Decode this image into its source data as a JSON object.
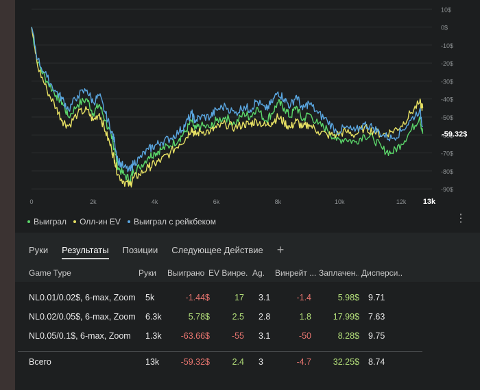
{
  "chart_data": {
    "type": "line",
    "x_ticks": [
      "0",
      "2k",
      "4k",
      "6k",
      "8k",
      "10k",
      "12k",
      "13k"
    ],
    "y_ticks": [
      "10$",
      "0$",
      "-10$",
      "-20$",
      "-30$",
      "-40$",
      "-50$",
      "-60$",
      "-70$",
      "-80$",
      "-90$"
    ],
    "x_range": [
      0,
      13000
    ],
    "y_range": [
      -93,
      12
    ],
    "current_value_label": "-59.32$",
    "grid": true,
    "legend_position": "bottom-left",
    "series": [
      {
        "name": "Выиграл",
        "color": "#5bd66a",
        "x": [
          0,
          200,
          500,
          800,
          1000,
          1200,
          1500,
          1800,
          2000,
          2200,
          2400,
          2600,
          2700,
          2800,
          3000,
          3200,
          3300,
          3500,
          3800,
          4000,
          4200,
          4500,
          4800,
          5000,
          5200,
          5300,
          5500,
          5800,
          6000,
          6300,
          6600,
          6900,
          7100,
          7300,
          7600,
          7800,
          8000,
          8200,
          8400,
          8600,
          8800,
          9000,
          9300,
          9600,
          9900,
          10200,
          10500,
          10800,
          11100,
          11400,
          11700,
          12000,
          12300,
          12600,
          12700
        ],
        "values": [
          0,
          -20,
          -30,
          -38,
          -42,
          -50,
          -43,
          -40,
          -48,
          -43,
          -52,
          -62,
          -68,
          -78,
          -82,
          -85,
          -80,
          -78,
          -72,
          -70,
          -68,
          -66,
          -62,
          -58,
          -52,
          -57,
          -55,
          -56,
          -52,
          -50,
          -54,
          -48,
          -50,
          -45,
          -52,
          -48,
          -42,
          -45,
          -50,
          -44,
          -52,
          -48,
          -54,
          -57,
          -63,
          -62,
          -64,
          -60,
          -62,
          -68,
          -70,
          -65,
          -58,
          -50,
          -59.32
        ]
      },
      {
        "name": "Олл-ин EV",
        "color": "#e6e063",
        "x": [
          0,
          200,
          500,
          800,
          1000,
          1200,
          1500,
          1800,
          2000,
          2200,
          2400,
          2600,
          2700,
          2800,
          3000,
          3200,
          3300,
          3500,
          3800,
          4000,
          4200,
          4500,
          4800,
          5000,
          5200,
          5300,
          5500,
          5800,
          6000,
          6300,
          6600,
          6900,
          7100,
          7300,
          7600,
          7800,
          8000,
          8200,
          8400,
          8600,
          8800,
          9000,
          9300,
          9600,
          9900,
          10200,
          10500,
          10800,
          11100,
          11400,
          11700,
          12000,
          12300,
          12600,
          12700
        ],
        "values": [
          0,
          -22,
          -35,
          -45,
          -52,
          -55,
          -48,
          -46,
          -52,
          -48,
          -58,
          -68,
          -74,
          -82,
          -86,
          -88,
          -84,
          -82,
          -78,
          -76,
          -74,
          -70,
          -65,
          -62,
          -56,
          -60,
          -58,
          -58,
          -56,
          -54,
          -56,
          -54,
          -54,
          -52,
          -55,
          -53,
          -50,
          -53,
          -56,
          -52,
          -56,
          -54,
          -58,
          -60,
          -60,
          -58,
          -60,
          -56,
          -58,
          -60,
          -58,
          -55,
          -48,
          -42,
          -45
        ]
      },
      {
        "name": "Выиграл с рейкбеком",
        "color": "#5aa6e0",
        "x": [
          0,
          200,
          500,
          800,
          1000,
          1200,
          1500,
          1800,
          2000,
          2200,
          2400,
          2600,
          2700,
          2800,
          3000,
          3200,
          3300,
          3500,
          3800,
          4000,
          4200,
          4500,
          4800,
          5000,
          5200,
          5300,
          5500,
          5800,
          6000,
          6300,
          6600,
          6900,
          7100,
          7300,
          7600,
          7800,
          8000,
          8200,
          8400,
          8600,
          8800,
          9000,
          9300,
          9600,
          9900,
          10200,
          10500,
          10800,
          11100,
          11400,
          11700,
          12000,
          12300,
          12600,
          12700
        ],
        "values": [
          0,
          -18,
          -28,
          -36,
          -40,
          -46,
          -38,
          -35,
          -42,
          -38,
          -48,
          -58,
          -64,
          -74,
          -78,
          -80,
          -76,
          -73,
          -68,
          -66,
          -64,
          -62,
          -58,
          -54,
          -48,
          -52,
          -50,
          -50,
          -46,
          -44,
          -48,
          -44,
          -46,
          -41,
          -46,
          -42,
          -36,
          -40,
          -44,
          -38,
          -46,
          -42,
          -48,
          -52,
          -58,
          -56,
          -58,
          -54,
          -56,
          -60,
          -62,
          -58,
          -52,
          -46,
          -55
        ]
      }
    ]
  },
  "legend": [
    {
      "label": "Выиграл",
      "color": "#5bd66a"
    },
    {
      "label": "Олл-ин EV",
      "color": "#e6e063"
    },
    {
      "label": "Выиграл с рейкбеком",
      "color": "#5aa6e0"
    }
  ],
  "tabs": [
    {
      "label": "Руки"
    },
    {
      "label": "Результаты"
    },
    {
      "label": "Позиции"
    },
    {
      "label": "Следующее Действие"
    },
    {
      "label": "+"
    }
  ],
  "table": {
    "columns": [
      "Game Type",
      "Руки",
      "Выиграно",
      "EV Винре...",
      "Аg.",
      "Винрейт ...",
      "Заплачен...",
      "Дисперси..."
    ],
    "rows": [
      {
        "game_type": "NL0.01/0.02$, 6-max, Zoom",
        "hands": "5k",
        "won": "-1.44$",
        "ev": "17",
        "ag": "3.1",
        "winrate": "-1.4",
        "paid": "5.98$",
        "variance": "9.71"
      },
      {
        "game_type": "NL0.02/0.05$, 6-max, Zoom",
        "hands": "6.3k",
        "won": "5.78$",
        "ev": "2.5",
        "ag": "2.8",
        "winrate": "1.8",
        "paid": "17.99$",
        "variance": "7.63"
      },
      {
        "game_type": "NL0.05/0.1$, 6-max, Zoom",
        "hands": "1.3k",
        "won": "-63.66$",
        "ev": "-55",
        "ag": "3.1",
        "winrate": "-50",
        "paid": "8.28$",
        "variance": "9.75"
      }
    ],
    "total": {
      "game_type": "Всего",
      "hands": "13k",
      "won": "-59.32$",
      "ev": "2.4",
      "ag": "3",
      "winrate": "-4.7",
      "paid": "32.25$",
      "variance": "8.74"
    }
  },
  "colors": {
    "positive": "#b4e07a",
    "negative": "#ea7670",
    "chart_bg": "#1c1e1f"
  }
}
